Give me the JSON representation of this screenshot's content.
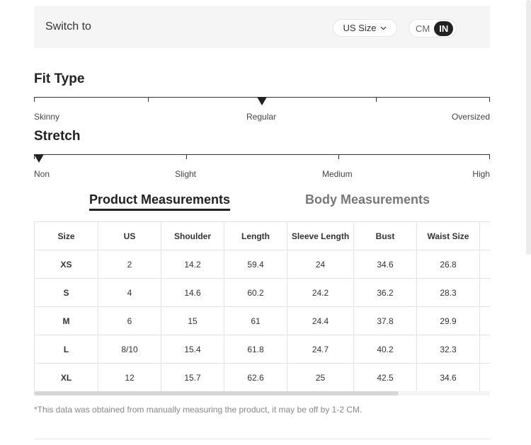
{
  "switch": {
    "label": "Switch to",
    "size_system": "US Size",
    "units": [
      "CM",
      "IN"
    ],
    "active_unit": "IN"
  },
  "fit_type": {
    "title": "Fit Type",
    "labels": [
      "Skinny",
      "Regular",
      "Oversized"
    ],
    "selected": "Regular"
  },
  "stretch": {
    "title": "Stretch",
    "labels": [
      "Non",
      "Slight",
      "Medium",
      "High"
    ],
    "selected": "Non"
  },
  "tabs": [
    {
      "label": "Product Measurements",
      "active": true
    },
    {
      "label": "Body Measurements",
      "active": false
    }
  ],
  "table": {
    "headers": [
      "Size",
      "US",
      "Shoulder",
      "Length",
      "Sleeve Length",
      "Bust",
      "Waist Size",
      ""
    ],
    "rows": [
      [
        "XS",
        "2",
        "14.2",
        "59.4",
        "24",
        "34.6",
        "26.8",
        ""
      ],
      [
        "S",
        "4",
        "14.6",
        "60.2",
        "24.2",
        "36.2",
        "28.3",
        ""
      ],
      [
        "M",
        "6",
        "15",
        "61",
        "24.4",
        "37.8",
        "29.9",
        ""
      ],
      [
        "L",
        "8/10",
        "15.4",
        "61.8",
        "24.7",
        "40.2",
        "32.3",
        ""
      ],
      [
        "XL",
        "12",
        "15.7",
        "62.6",
        "25",
        "42.5",
        "34.6",
        ""
      ]
    ]
  },
  "note": "*This data was obtained from manually measuring the product, it may be off by 1-2 CM."
}
